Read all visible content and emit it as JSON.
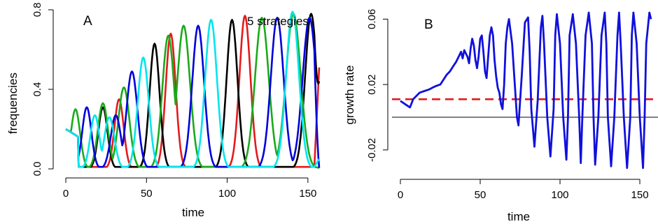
{
  "chart_data": [
    {
      "panel": "A",
      "type": "line",
      "annotation": "5 strategies",
      "xlabel": "time",
      "ylabel": "frequencies",
      "xlim": [
        0,
        157
      ],
      "ylim": [
        0,
        0.8
      ],
      "xticks": [
        0,
        50,
        100,
        150
      ],
      "yticks": [
        0.0,
        0.4,
        0.8
      ],
      "ytick_labels": [
        "0.0",
        "0.4",
        "0.8"
      ],
      "cycle": {
        "period": 48.6,
        "initial_value": 0.2,
        "peak_times": {
          "green": [
            6,
            23,
            36,
            63.5,
            73,
            121.5,
            141
          ],
          "blue": [
            13,
            31,
            41,
            82,
            131,
            151
          ],
          "cyan": [
            18,
            27,
            48,
            90,
            140.5
          ],
          "black": [
            23,
            55,
            103,
            152
          ],
          "red": [
            33,
            65,
            111
          ]
        },
        "peak_values": {
          "green": [
            0.3,
            0.33,
            0.41,
            0.67,
            0.72,
            0.76,
            0.78
          ],
          "blue": [
            0.31,
            0.27,
            0.49,
            0.72,
            0.76,
            0.76
          ],
          "cyan": [
            0.27,
            0.26,
            0.56,
            0.75,
            0.79
          ],
          "black": [
            0.31,
            0.63,
            0.75,
            0.78
          ],
          "red": [
            0.35,
            0.68,
            0.77
          ]
        },
        "trough_value": 0.01
      },
      "series": [
        {
          "color": "#e31a1c",
          "key": "red"
        },
        {
          "color": "#000000",
          "key": "black"
        },
        {
          "color": "#1aaa1a",
          "key": "green"
        },
        {
          "color": "#0000dd",
          "key": "blue"
        },
        {
          "color": "#00e5ee",
          "key": "cyan"
        }
      ],
      "endpoints": {
        "red": 0.51,
        "black": 0.44,
        "cyan": 0.05,
        "blue": 0.005,
        "green": 0.005
      }
    },
    {
      "panel": "B",
      "type": "line",
      "xlabel": "time",
      "ylabel": "growth rate",
      "xlim": [
        0,
        157
      ],
      "ylim": [
        -0.032,
        0.064
      ],
      "xticks": [
        0,
        50,
        100,
        150
      ],
      "yticks": [
        -0.02,
        0.02,
        0.06
      ],
      "ytick_labels": [
        "-0.02",
        "0.02",
        "0.06"
      ],
      "reference_lines": [
        {
          "y": 0.0,
          "color": "#000000",
          "style": "solid"
        },
        {
          "y": 0.011,
          "color": "#e31a1c",
          "style": "dashed"
        }
      ],
      "series": [
        {
          "color": "#1010dd",
          "x": [
            0,
            3,
            6,
            8,
            10,
            12,
            15,
            18,
            20,
            22,
            25,
            27,
            29,
            31,
            33,
            35,
            37,
            38,
            39,
            40,
            41,
            42,
            43,
            44,
            45,
            46,
            47,
            48,
            49,
            50,
            51,
            52,
            53,
            54,
            55,
            56,
            57,
            58,
            59,
            60,
            61,
            62,
            63,
            64,
            65,
            66,
            67,
            68,
            70,
            72,
            73,
            74,
            76,
            78,
            80,
            81,
            82,
            84,
            86,
            88,
            89,
            90,
            92,
            94,
            96,
            97,
            98,
            100,
            102,
            104,
            105,
            106,
            108,
            110,
            112,
            113,
            114,
            116,
            118,
            120,
            121,
            122,
            124,
            126,
            128,
            129,
            130,
            132,
            134,
            136,
            137,
            138,
            140,
            142,
            144,
            145,
            146,
            148,
            150,
            152,
            153,
            154,
            156,
            157
          ],
          "y": [
            0.01,
            0.008,
            0.006,
            0.011,
            0.013,
            0.015,
            0.016,
            0.017,
            0.018,
            0.019,
            0.02,
            0.023,
            0.026,
            0.028,
            0.031,
            0.034,
            0.038,
            0.04,
            0.036,
            0.041,
            0.039,
            0.037,
            0.033,
            0.042,
            0.048,
            0.044,
            0.035,
            0.03,
            0.037,
            0.048,
            0.05,
            0.04,
            0.028,
            0.024,
            0.037,
            0.05,
            0.055,
            0.05,
            0.035,
            0.025,
            0.018,
            0.015,
            0.008,
            0.005,
            0.02,
            0.045,
            0.055,
            0.06,
            0.045,
            0.015,
            0.0,
            -0.005,
            0.025,
            0.058,
            0.061,
            0.04,
            0.005,
            -0.018,
            0.01,
            0.055,
            0.062,
            0.045,
            0.0,
            -0.024,
            0.005,
            0.05,
            0.063,
            0.045,
            0.0,
            -0.026,
            0.0,
            0.05,
            0.063,
            0.045,
            0.0,
            -0.028,
            0.0,
            0.05,
            0.064,
            0.045,
            0.0,
            -0.029,
            0.0,
            0.05,
            0.064,
            0.045,
            0.0,
            -0.03,
            0.0,
            0.05,
            0.064,
            0.045,
            0.0,
            -0.031,
            0.0,
            0.05,
            0.064,
            0.045,
            0.0,
            -0.031,
            0.0,
            0.045,
            0.064,
            0.06
          ]
        }
      ]
    }
  ]
}
